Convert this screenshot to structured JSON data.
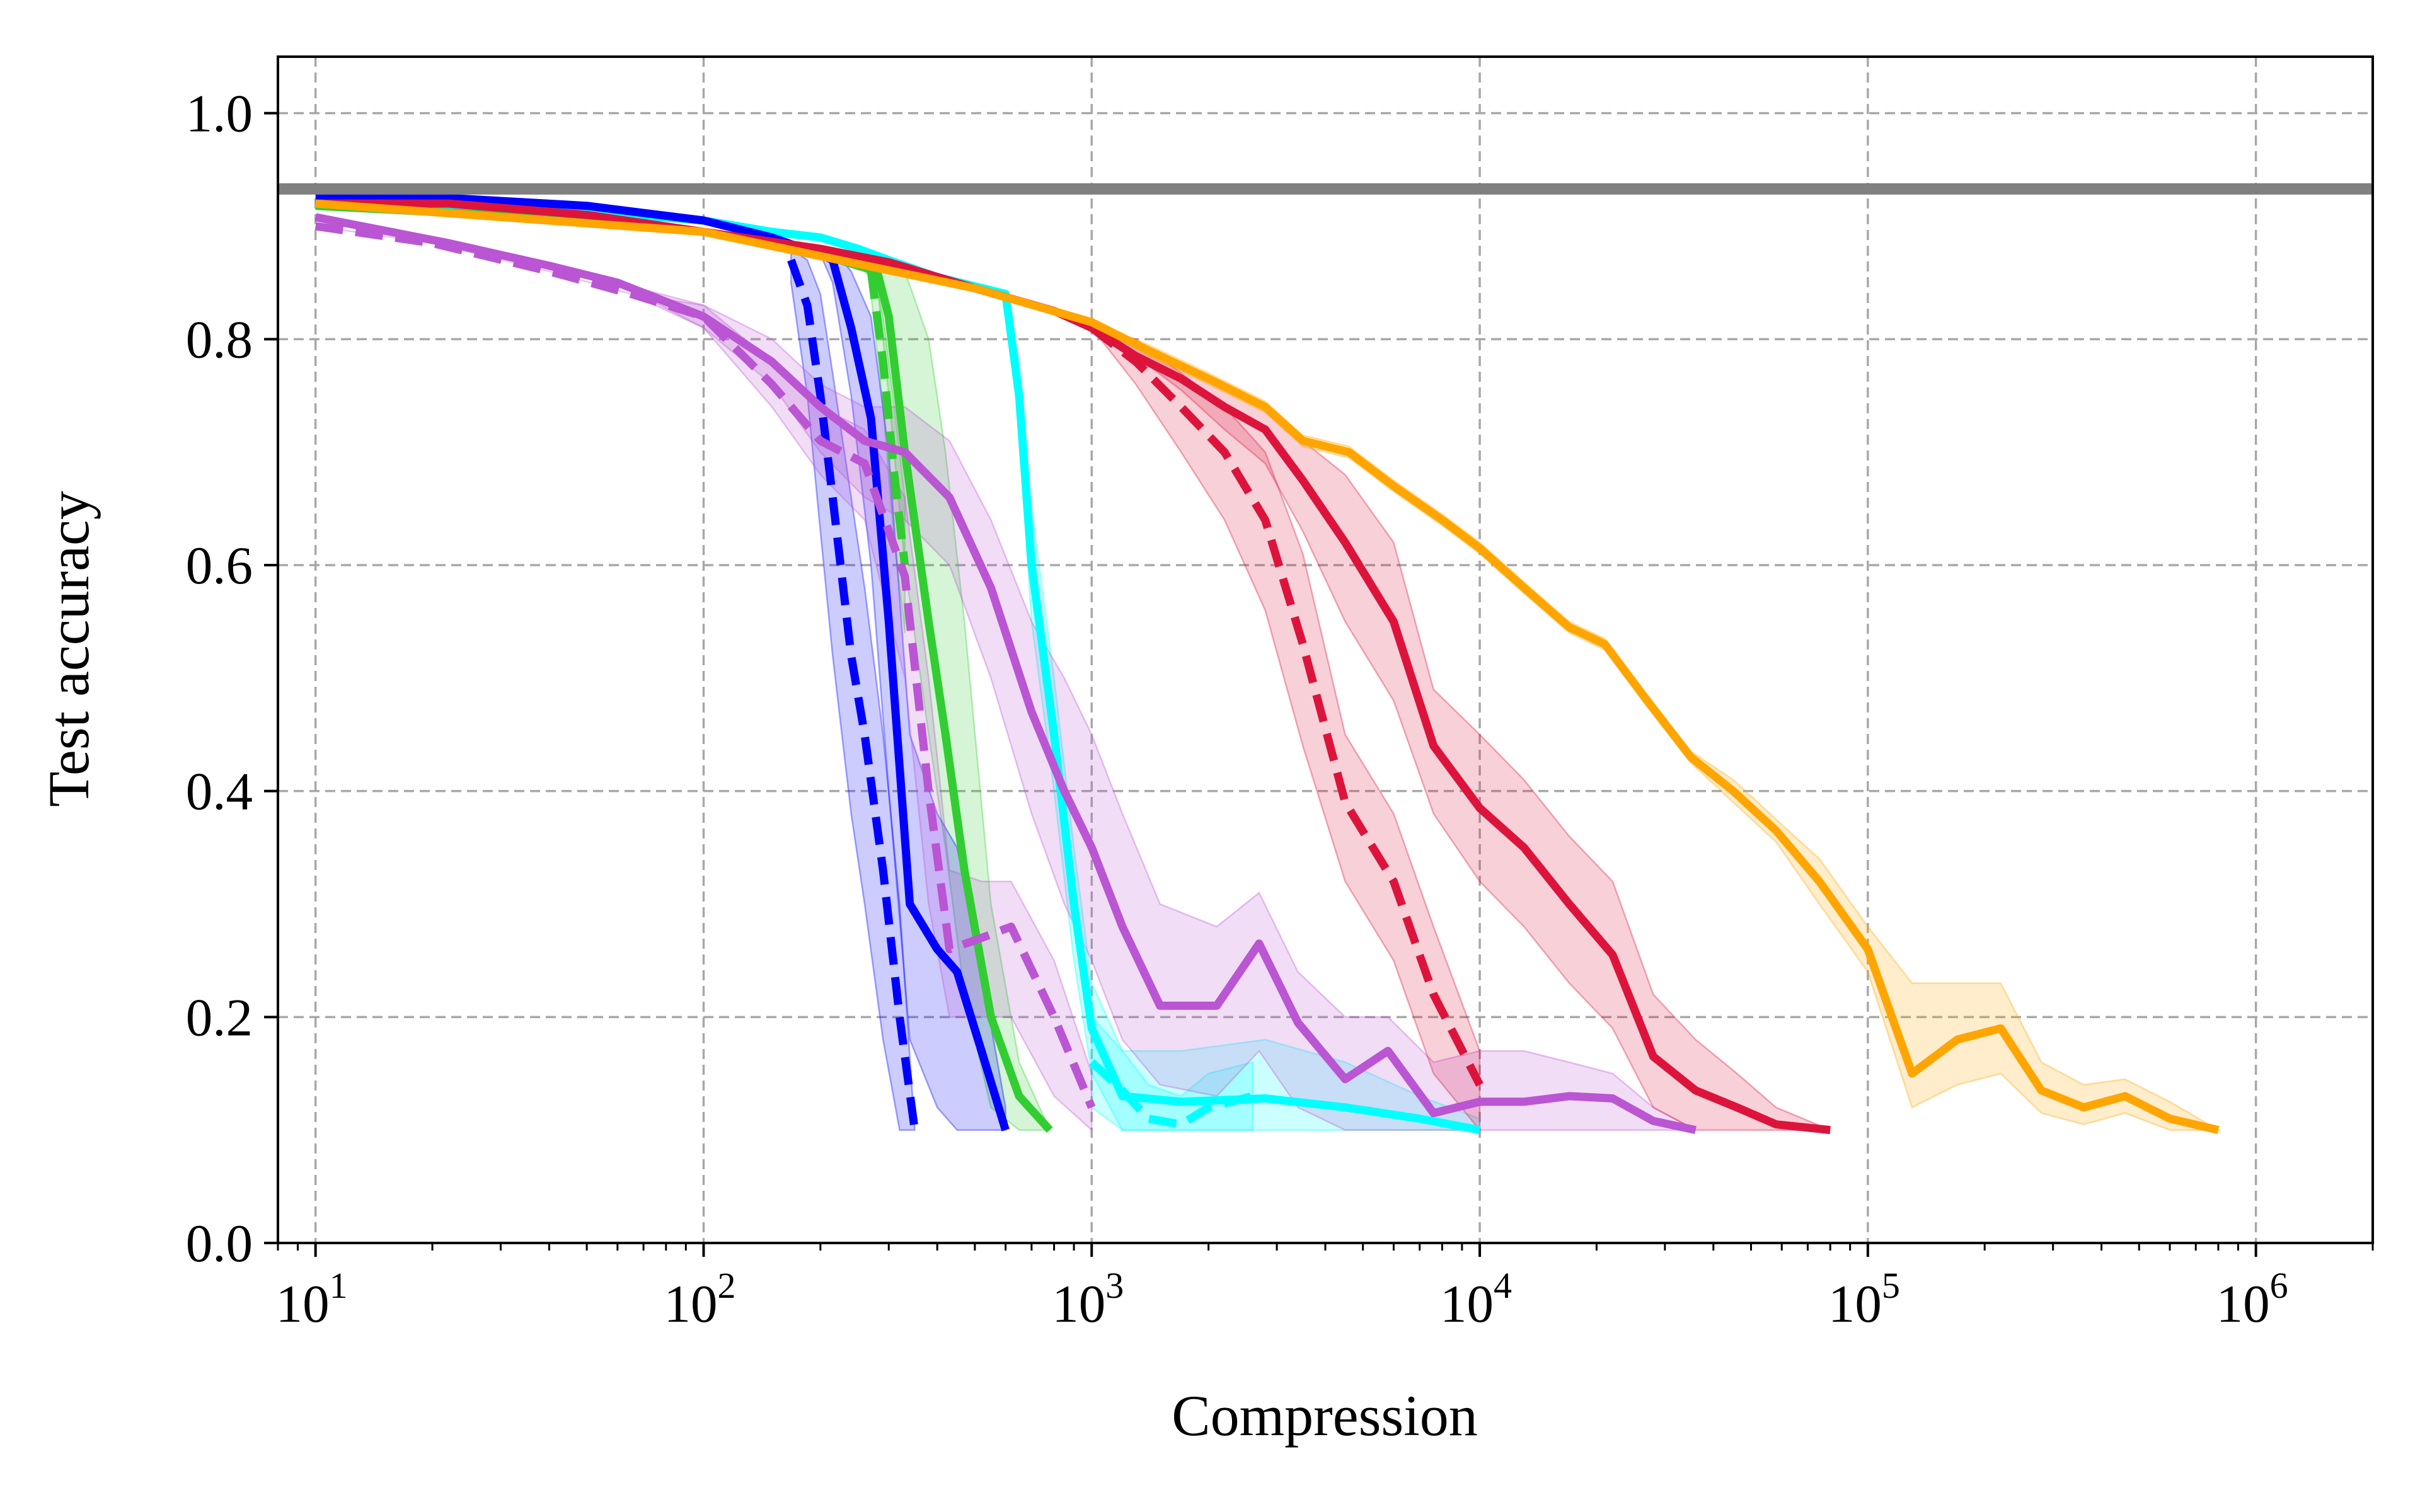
{
  "chart_data": {
    "type": "line",
    "xscale": "log",
    "xlabel": "Compression",
    "ylabel": "Test accuracy",
    "xlim": [
      8,
      2000000
    ],
    "ylim": [
      0.0,
      1.05
    ],
    "grid": true,
    "xticks": [
      {
        "value": 10,
        "base": "10",
        "exp": "1"
      },
      {
        "value": 100,
        "base": "10",
        "exp": "2"
      },
      {
        "value": 1000,
        "base": "10",
        "exp": "3"
      },
      {
        "value": 10000,
        "base": "10",
        "exp": "4"
      },
      {
        "value": 100000,
        "base": "10",
        "exp": "5"
      },
      {
        "value": 1000000,
        "base": "10",
        "exp": "6"
      }
    ],
    "yticks": [
      {
        "value": 0.0,
        "label": "0.0"
      },
      {
        "value": 0.2,
        "label": "0.2"
      },
      {
        "value": 0.4,
        "label": "0.4"
      },
      {
        "value": 0.6,
        "label": "0.6"
      },
      {
        "value": 0.8,
        "label": "0.8"
      },
      {
        "value": 1.0,
        "label": "1.0"
      }
    ],
    "reference_line": {
      "name": "baseline",
      "y": 0.933,
      "color": "#808080"
    },
    "series": [
      {
        "name": "cyan-solid",
        "color": "#00ffff",
        "dash": false,
        "x": [
          10,
          22,
          50,
          100,
          150,
          200,
          250,
          300,
          400,
          600,
          650,
          700,
          800,
          900,
          1000,
          1200,
          1700,
          2800,
          4500,
          7000,
          10000
        ],
        "y": [
          0.92,
          0.918,
          0.913,
          0.905,
          0.895,
          0.89,
          0.88,
          0.87,
          0.855,
          0.84,
          0.75,
          0.6,
          0.45,
          0.3,
          0.19,
          0.13,
          0.125,
          0.128,
          0.12,
          0.11,
          0.1
        ],
        "lo": [
          0.92,
          0.918,
          0.913,
          0.905,
          0.895,
          0.89,
          0.88,
          0.87,
          0.855,
          0.84,
          0.72,
          0.55,
          0.4,
          0.25,
          0.15,
          0.1,
          0.1,
          0.1,
          0.1,
          0.1,
          0.1
        ],
        "hi": [
          0.92,
          0.918,
          0.913,
          0.905,
          0.895,
          0.89,
          0.88,
          0.87,
          0.855,
          0.84,
          0.78,
          0.65,
          0.5,
          0.35,
          0.23,
          0.17,
          0.17,
          0.18,
          0.16,
          0.13,
          0.11
        ]
      },
      {
        "name": "cyan-dashed",
        "color": "#00ffff",
        "dash": true,
        "x": [
          1000,
          1200,
          1400,
          1700,
          2000,
          2600
        ],
        "y": [
          0.16,
          0.135,
          0.11,
          0.105,
          0.12,
          0.13
        ],
        "lo": [
          0.12,
          0.1,
          0.1,
          0.1,
          0.1,
          0.1
        ],
        "hi": [
          0.2,
          0.17,
          0.14,
          0.13,
          0.15,
          0.16
        ]
      },
      {
        "name": "green-solid",
        "color": "#32cd32",
        "dash": false,
        "x": [
          10,
          22,
          50,
          100,
          150,
          200,
          250,
          280,
          300,
          330,
          380,
          420,
          470,
          550,
          650,
          780
        ],
        "y": [
          0.918,
          0.912,
          0.905,
          0.895,
          0.885,
          0.875,
          0.865,
          0.86,
          0.82,
          0.7,
          0.55,
          0.45,
          0.33,
          0.2,
          0.13,
          0.1
        ],
        "lo": [
          0.918,
          0.912,
          0.905,
          0.895,
          0.885,
          0.875,
          0.865,
          0.85,
          0.75,
          0.6,
          0.45,
          0.35,
          0.22,
          0.12,
          0.1,
          0.1
        ],
        "hi": [
          0.918,
          0.912,
          0.905,
          0.895,
          0.885,
          0.875,
          0.865,
          0.87,
          0.87,
          0.86,
          0.8,
          0.7,
          0.55,
          0.3,
          0.16,
          0.1
        ]
      },
      {
        "name": "green-dashed",
        "color": "#32cd32",
        "dash": true,
        "x": [
          270,
          290,
          310,
          330
        ],
        "y": [
          0.86,
          0.78,
          0.68,
          0.6
        ],
        "lo": [
          0.84,
          0.74,
          0.62,
          0.54
        ],
        "hi": [
          0.87,
          0.82,
          0.74,
          0.66
        ]
      },
      {
        "name": "blue-solid",
        "color": "#0000ff",
        "dash": false,
        "x": [
          10,
          22,
          50,
          100,
          150,
          200,
          215,
          240,
          270,
          300,
          340,
          400,
          450,
          520,
          600
        ],
        "y": [
          0.925,
          0.925,
          0.918,
          0.905,
          0.89,
          0.875,
          0.87,
          0.81,
          0.73,
          0.55,
          0.3,
          0.26,
          0.24,
          0.17,
          0.1
        ],
        "lo": [
          0.925,
          0.925,
          0.918,
          0.905,
          0.89,
          0.875,
          0.85,
          0.75,
          0.6,
          0.4,
          0.18,
          0.12,
          0.1,
          0.1,
          0.1
        ],
        "hi": [
          0.925,
          0.925,
          0.918,
          0.905,
          0.89,
          0.875,
          0.88,
          0.86,
          0.82,
          0.7,
          0.45,
          0.38,
          0.35,
          0.24,
          0.12
        ]
      },
      {
        "name": "blue-dashed",
        "color": "#0000ff",
        "dash": true,
        "x": [
          168,
          185,
          200,
          215,
          240,
          260,
          290,
          320,
          350
        ],
        "y": [
          0.87,
          0.83,
          0.75,
          0.66,
          0.52,
          0.45,
          0.33,
          0.2,
          0.1
        ],
        "lo": [
          0.85,
          0.75,
          0.63,
          0.52,
          0.38,
          0.3,
          0.18,
          0.1,
          0.1
        ],
        "hi": [
          0.88,
          0.87,
          0.84,
          0.77,
          0.66,
          0.58,
          0.45,
          0.3,
          0.1
        ]
      },
      {
        "name": "purple-solid",
        "color": "#ba55d3",
        "dash": false,
        "x": [
          10,
          22,
          40,
          60,
          100,
          150,
          200,
          260,
          330,
          430,
          550,
          700,
          850,
          1000,
          1200,
          1500,
          2100,
          2700,
          3400,
          4500,
          5800,
          7600,
          10000,
          13000,
          17000,
          22000,
          28000,
          36000
        ],
        "y": [
          0.908,
          0.885,
          0.865,
          0.85,
          0.82,
          0.78,
          0.74,
          0.71,
          0.7,
          0.66,
          0.58,
          0.47,
          0.4,
          0.35,
          0.28,
          0.21,
          0.21,
          0.265,
          0.195,
          0.145,
          0.17,
          0.115,
          0.125,
          0.125,
          0.13,
          0.128,
          0.108,
          0.1
        ],
        "lo": [
          0.908,
          0.885,
          0.865,
          0.85,
          0.81,
          0.76,
          0.7,
          0.66,
          0.64,
          0.6,
          0.5,
          0.38,
          0.3,
          0.25,
          0.18,
          0.14,
          0.13,
          0.17,
          0.12,
          0.1,
          0.1,
          0.1,
          0.1,
          0.1,
          0.1,
          0.1,
          0.1,
          0.1
        ],
        "hi": [
          0.908,
          0.885,
          0.865,
          0.85,
          0.83,
          0.8,
          0.76,
          0.74,
          0.74,
          0.71,
          0.64,
          0.55,
          0.5,
          0.45,
          0.38,
          0.3,
          0.28,
          0.31,
          0.24,
          0.2,
          0.2,
          0.16,
          0.17,
          0.17,
          0.16,
          0.15,
          0.12,
          0.1
        ]
      },
      {
        "name": "purple-dashed",
        "color": "#ba55d3",
        "dash": true,
        "x": [
          10,
          20,
          40,
          65,
          100,
          150,
          200,
          260,
          330,
          380,
          430,
          520,
          620,
          800,
          1000
        ],
        "y": [
          0.9,
          0.885,
          0.86,
          0.84,
          0.82,
          0.76,
          0.71,
          0.69,
          0.59,
          0.4,
          0.26,
          0.27,
          0.28,
          0.2,
          0.12
        ],
        "lo": [
          0.9,
          0.885,
          0.86,
          0.84,
          0.81,
          0.74,
          0.68,
          0.64,
          0.5,
          0.3,
          0.2,
          0.2,
          0.2,
          0.13,
          0.1
        ],
        "hi": [
          0.9,
          0.885,
          0.86,
          0.84,
          0.83,
          0.78,
          0.74,
          0.72,
          0.66,
          0.5,
          0.33,
          0.32,
          0.32,
          0.25,
          0.15
        ]
      },
      {
        "name": "red-solid",
        "color": "#dc143c",
        "dash": false,
        "x": [
          10,
          22,
          50,
          100,
          200,
          300,
          500,
          800,
          1000,
          1300,
          1700,
          2200,
          2800,
          3500,
          4500,
          6000,
          7600,
          10000,
          13000,
          17000,
          22000,
          28000,
          36000,
          46000,
          58000,
          80000
        ],
        "y": [
          0.92,
          0.92,
          0.91,
          0.895,
          0.88,
          0.868,
          0.845,
          0.825,
          0.81,
          0.785,
          0.765,
          0.74,
          0.72,
          0.675,
          0.62,
          0.55,
          0.44,
          0.385,
          0.35,
          0.3,
          0.255,
          0.165,
          0.135,
          0.12,
          0.105,
          0.1
        ],
        "lo": [
          0.92,
          0.92,
          0.91,
          0.895,
          0.88,
          0.868,
          0.845,
          0.825,
          0.81,
          0.785,
          0.755,
          0.72,
          0.69,
          0.63,
          0.55,
          0.48,
          0.38,
          0.32,
          0.28,
          0.23,
          0.19,
          0.12,
          0.1,
          0.1,
          0.1,
          0.1
        ],
        "hi": [
          0.92,
          0.92,
          0.91,
          0.895,
          0.88,
          0.868,
          0.845,
          0.825,
          0.81,
          0.795,
          0.775,
          0.76,
          0.74,
          0.71,
          0.68,
          0.62,
          0.49,
          0.45,
          0.41,
          0.36,
          0.32,
          0.22,
          0.18,
          0.15,
          0.12,
          0.1
        ]
      },
      {
        "name": "red-dashed",
        "color": "#dc143c",
        "dash": true,
        "x": [
          1000,
          1300,
          1700,
          2200,
          2800,
          3500,
          4500,
          6000,
          7600,
          10000
        ],
        "y": [
          0.81,
          0.78,
          0.74,
          0.7,
          0.64,
          0.53,
          0.39,
          0.32,
          0.22,
          0.14
        ],
        "lo": [
          0.81,
          0.76,
          0.7,
          0.64,
          0.56,
          0.44,
          0.32,
          0.25,
          0.15,
          0.1
        ],
        "hi": [
          0.81,
          0.8,
          0.77,
          0.74,
          0.7,
          0.61,
          0.45,
          0.38,
          0.28,
          0.17
        ]
      },
      {
        "name": "orange-solid",
        "color": "#ffa500",
        "dash": false,
        "x": [
          10,
          100,
          500,
          1000,
          1400,
          2000,
          2800,
          3500,
          4600,
          6000,
          8000,
          10000,
          13000,
          17000,
          21000,
          27000,
          35000,
          45000,
          58000,
          75000,
          100000,
          130000,
          170000,
          220000,
          280000,
          360000,
          460000,
          600000,
          800000
        ],
        "y": [
          0.92,
          0.895,
          0.845,
          0.815,
          0.79,
          0.765,
          0.74,
          0.71,
          0.7,
          0.67,
          0.64,
          0.615,
          0.58,
          0.545,
          0.53,
          0.48,
          0.43,
          0.4,
          0.365,
          0.32,
          0.26,
          0.15,
          0.18,
          0.19,
          0.135,
          0.12,
          0.13,
          0.11,
          0.1
        ],
        "lo": [
          0.92,
          0.895,
          0.845,
          0.815,
          0.785,
          0.76,
          0.735,
          0.705,
          0.695,
          0.665,
          0.635,
          0.61,
          0.575,
          0.54,
          0.525,
          0.475,
          0.425,
          0.39,
          0.355,
          0.3,
          0.24,
          0.12,
          0.14,
          0.15,
          0.115,
          0.105,
          0.115,
          0.1,
          0.1
        ],
        "hi": [
          0.92,
          0.895,
          0.845,
          0.815,
          0.795,
          0.77,
          0.745,
          0.715,
          0.705,
          0.675,
          0.645,
          0.62,
          0.585,
          0.55,
          0.535,
          0.485,
          0.435,
          0.41,
          0.375,
          0.34,
          0.28,
          0.23,
          0.23,
          0.23,
          0.16,
          0.14,
          0.145,
          0.125,
          0.1
        ]
      }
    ]
  }
}
